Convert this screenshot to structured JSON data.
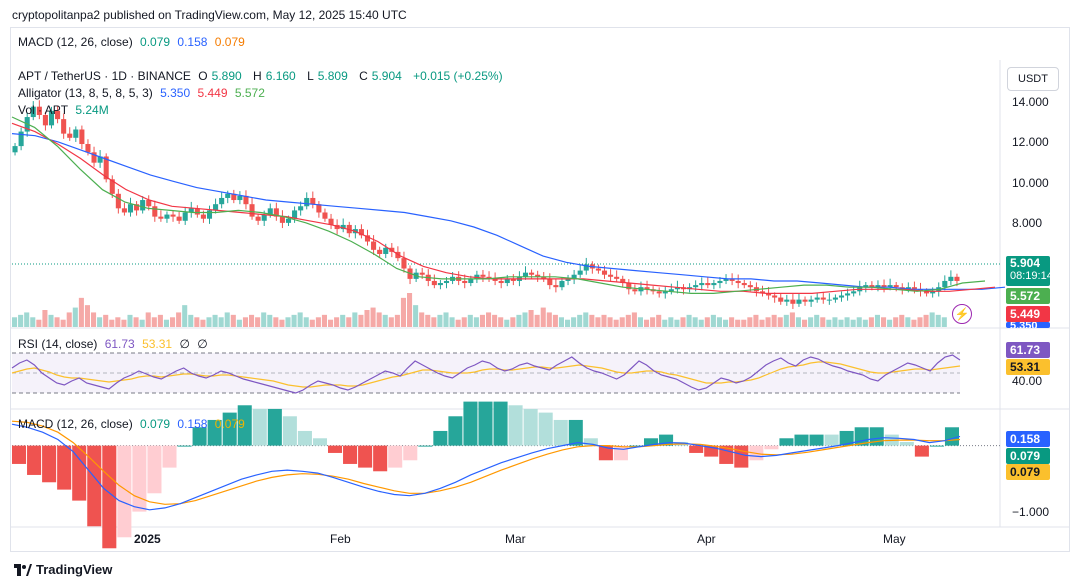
{
  "header": {
    "publish_text": "cryptopolitanpa2 published on TradingView.com, May 12, 2025 15:40 UTC"
  },
  "top_macd": {
    "title": "MACD (12, 26, close)",
    "v1": "0.079",
    "v2": "0.158",
    "v3": "0.079"
  },
  "main_legend": {
    "symbol": "APT / TetherUS · 1D · BINANCE",
    "o_label": "O",
    "o": "5.890",
    "h_label": "H",
    "h": "6.160",
    "l_label": "L",
    "l": "5.809",
    "c_label": "C",
    "c": "5.904",
    "change": "+0.015 (+0.25%)",
    "alligator_title": "Alligator (13, 8, 5, 8, 5, 3)",
    "jaw": "5.350",
    "teeth": "5.449",
    "lips": "5.572",
    "vol_title": "Vol · APT",
    "vol_value": "5.24M"
  },
  "currency_button": "USDT",
  "price_tags": {
    "last": "5.904",
    "countdown": "08:19:14",
    "lips": "5.572",
    "teeth": "5.449",
    "jaw": "5.350"
  },
  "rsi": {
    "title": "RSI (14, close)",
    "rsi": "61.73",
    "ma": "53.31",
    "v3": "∅",
    "v4": "∅",
    "tag_rsi": "61.73",
    "tag_ma": "53.31",
    "axis_label": "40.00"
  },
  "macd": {
    "title": "MACD (12, 26, close)",
    "hist": "0.079",
    "macd": "0.158",
    "signal": "0.079",
    "tag_macd": "0.158",
    "tag_hist": "0.079",
    "tag_signal": "0.079",
    "axis_label": "−1.000"
  },
  "footer": {
    "brand": "TradingView"
  },
  "colors": {
    "up": "#26a69a",
    "down": "#ef5350",
    "jaw": "#2962ff",
    "teeth": "#f23645",
    "lips": "#4caf50",
    "rsi": "#7e57c2",
    "rsi_ma": "#fbc02d",
    "macd": "#2962ff",
    "signal": "#ff9800"
  },
  "chart_data": {
    "type": "candlestick",
    "y_ticks": [
      "14.000",
      "12.000",
      "10.000",
      "8.000"
    ],
    "x_ticks": [
      "2025",
      "Feb",
      "Mar",
      "Apr",
      "May"
    ],
    "price_ylim": [
      4.5,
      15.2
    ],
    "closes": [
      12.4,
      13.1,
      13.8,
      14.3,
      13.9,
      13.4,
      14.1,
      13.7,
      13.0,
      12.8,
      13.2,
      12.5,
      12.1,
      11.6,
      11.9,
      10.8,
      10.1,
      9.4,
      9.2,
      9.6,
      9.3,
      9.8,
      9.5,
      9.0,
      8.9,
      9.1,
      9.0,
      8.8,
      9.2,
      9.4,
      9.1,
      8.9,
      9.3,
      9.6,
      9.9,
      10.1,
      9.8,
      10.0,
      9.6,
      9.0,
      8.8,
      9.1,
      9.4,
      9.0,
      8.7,
      8.9,
      9.3,
      9.5,
      9.9,
      9.6,
      9.2,
      8.9,
      8.6,
      8.4,
      8.6,
      8.2,
      8.4,
      8.1,
      7.8,
      7.4,
      7.2,
      7.5,
      7.3,
      7.0,
      6.5,
      6.0,
      6.3,
      6.2,
      5.9,
      5.7,
      5.8,
      5.9,
      6.1,
      5.9,
      5.8,
      6.0,
      6.2,
      6.1,
      6.0,
      5.9,
      5.8,
      6.0,
      5.9,
      6.1,
      6.3,
      6.2,
      6.1,
      6.0,
      5.7,
      5.6,
      5.9,
      6.0,
      6.2,
      6.4,
      6.7,
      6.5,
      6.4,
      6.2,
      6.1,
      6.0,
      5.8,
      5.5,
      5.4,
      5.6,
      5.5,
      5.4,
      5.3,
      5.4,
      5.5,
      5.6,
      5.5,
      5.6,
      5.7,
      5.8,
      5.7,
      5.8,
      5.9,
      6.0,
      5.9,
      5.8,
      5.7,
      5.6,
      5.4,
      5.3,
      5.2,
      5.1,
      4.9,
      5.0,
      4.8,
      5.0,
      4.9,
      5.0,
      5.1,
      5.0,
      5.0,
      5.1,
      5.2,
      5.3,
      5.4,
      5.6,
      5.7,
      5.6,
      5.7,
      5.6,
      5.7,
      5.6,
      5.5,
      5.6,
      5.5,
      5.4,
      5.3,
      5.4,
      5.6,
      5.9,
      6.1,
      5.9
    ],
    "jaw": [
      13.0,
      12.9,
      12.6,
      12.2,
      11.8,
      11.4,
      11.0,
      10.7,
      10.4,
      10.2,
      10.0,
      9.8,
      9.7,
      9.6,
      9.5,
      9.4,
      9.3,
      9.2,
      9.0,
      8.8,
      8.5,
      8.1,
      7.6,
      7.1,
      6.8,
      6.6,
      6.5,
      6.4,
      6.3,
      6.2,
      6.1,
      6.0,
      6.0,
      5.9,
      5.9,
      5.8,
      5.7,
      5.6,
      5.6,
      5.5,
      5.5,
      5.5,
      5.5,
      5.6
    ],
    "teeth": [
      13.5,
      13.1,
      12.5,
      11.8,
      11.0,
      10.3,
      9.8,
      9.5,
      9.4,
      9.3,
      9.2,
      9.1,
      9.0,
      8.8,
      8.6,
      8.3,
      7.8,
      7.1,
      6.6,
      6.3,
      6.1,
      6.0,
      6.0,
      6.0,
      6.0,
      6.0,
      5.9,
      5.8,
      5.7,
      5.6,
      5.5,
      5.4,
      5.4,
      5.3,
      5.3,
      5.3,
      5.4,
      5.5,
      5.5,
      5.5,
      5.4,
      5.4,
      5.5,
      5.6
    ],
    "lips": [
      13.8,
      13.3,
      12.4,
      11.3,
      10.3,
      9.7,
      9.4,
      9.3,
      9.2,
      9.2,
      9.3,
      9.2,
      9.0,
      8.7,
      8.3,
      7.8,
      7.2,
      6.5,
      6.1,
      6.0,
      6.0,
      6.0,
      6.1,
      6.1,
      6.1,
      6.0,
      5.8,
      5.6,
      5.5,
      5.4,
      5.3,
      5.3,
      5.4,
      5.5,
      5.6,
      5.7,
      5.7,
      5.6,
      5.6,
      5.5,
      5.4,
      5.5,
      5.8,
      5.9
    ],
    "volume": [
      4,
      5,
      6,
      4,
      3,
      7,
      5,
      4,
      3,
      6,
      8,
      12,
      9,
      6,
      4,
      5,
      3,
      4,
      3,
      5,
      4,
      3,
      6,
      4,
      5,
      3,
      4,
      6,
      9,
      5,
      4,
      3,
      4,
      5,
      4,
      6,
      5,
      3,
      4,
      5,
      4,
      6,
      5,
      4,
      3,
      4,
      5,
      6,
      4,
      3,
      4,
      5,
      3,
      4,
      5,
      4,
      6,
      5,
      7,
      8,
      6,
      5,
      4,
      5,
      12,
      14,
      9,
      6,
      5,
      4,
      5,
      6,
      4,
      3,
      4,
      5,
      4,
      5,
      6,
      5,
      4,
      3,
      4,
      5,
      6,
      7,
      5,
      8,
      6,
      5,
      4,
      3,
      4,
      5,
      6,
      5,
      4,
      5,
      4,
      3,
      4,
      5,
      6,
      4,
      3,
      4,
      5,
      3,
      4,
      3,
      4,
      5,
      4,
      3,
      4,
      5,
      4,
      3,
      4,
      3,
      3,
      4,
      5,
      3,
      4,
      5,
      4,
      5,
      6,
      4,
      3,
      4,
      5,
      4,
      3,
      4,
      3,
      4,
      3,
      4,
      3,
      4,
      5,
      4,
      3,
      4,
      5,
      4,
      3,
      4,
      5,
      6,
      5,
      4
    ],
    "rsi_ylim": [
      20,
      90
    ],
    "rsi": [
      55,
      60,
      63,
      58,
      50,
      45,
      40,
      38,
      42,
      45,
      40,
      38,
      36,
      34,
      40,
      45,
      48,
      52,
      49,
      46,
      44,
      48,
      52,
      55,
      50,
      47,
      45,
      48,
      52,
      50,
      47,
      44,
      42,
      40,
      38,
      36,
      34,
      32,
      30,
      33,
      38,
      42,
      40,
      38,
      35,
      33,
      36,
      40,
      44,
      48,
      52,
      50,
      47,
      55,
      62,
      58,
      54,
      50,
      47,
      45,
      50,
      55,
      58,
      62,
      60,
      55,
      52,
      54,
      58,
      60,
      57,
      55,
      53,
      58,
      62,
      66,
      60,
      55,
      52,
      50,
      47,
      44,
      48,
      55,
      62,
      58,
      52,
      48,
      46,
      44,
      40,
      36,
      33,
      35,
      40,
      45,
      43,
      40,
      42,
      46,
      52,
      58,
      62,
      65,
      60,
      57,
      63,
      66,
      64,
      60,
      57,
      55,
      52,
      50,
      48,
      44,
      42,
      48,
      52,
      56,
      60,
      58,
      55,
      52,
      60,
      66,
      68,
      63
    ],
    "rsi_ma": [
      50,
      52,
      54,
      55,
      53,
      51,
      48,
      46,
      45,
      45,
      44,
      43,
      42,
      41,
      42,
      43,
      44,
      46,
      47,
      47,
      46,
      47,
      48,
      49,
      49,
      48,
      47,
      47,
      48,
      48,
      47,
      46,
      45,
      44,
      43,
      42,
      40,
      38,
      37,
      36,
      36,
      37,
      38,
      38,
      38,
      37,
      37,
      38,
      40,
      42,
      44,
      46,
      47,
      49,
      51,
      53,
      53,
      52,
      51,
      50,
      50,
      50,
      51,
      53,
      54,
      54,
      53,
      53,
      54,
      55,
      56,
      56,
      55,
      55,
      56,
      57,
      58,
      57,
      56,
      55,
      53,
      51,
      50,
      50,
      51,
      52,
      52,
      51,
      49,
      48,
      46,
      44,
      42,
      40,
      40,
      40,
      41,
      41,
      42,
      43,
      45,
      48,
      51,
      54,
      56,
      57,
      58,
      60,
      61,
      61,
      60,
      59,
      57,
      55,
      53,
      51,
      50,
      50,
      51,
      52,
      53,
      54,
      54,
      53,
      54,
      55,
      56,
      57
    ],
    "rsi_ticks": [
      40
    ],
    "macd_ylim": [
      -1.25,
      0.55
    ],
    "macd_line": [
      0.35,
      0.3,
      0.22,
      0.1,
      -0.1,
      -0.4,
      -0.7,
      -0.9,
      -1.0,
      -1.05,
      -1.02,
      -0.95,
      -0.85,
      -0.75,
      -0.65,
      -0.55,
      -0.48,
      -0.42,
      -0.4,
      -0.42,
      -0.45,
      -0.52,
      -0.6,
      -0.68,
      -0.75,
      -0.8,
      -0.82,
      -0.78,
      -0.7,
      -0.6,
      -0.48,
      -0.38,
      -0.28,
      -0.2,
      -0.12,
      -0.05,
      0.0,
      0.05,
      0.02,
      -0.04,
      -0.06,
      -0.02,
      0.02,
      0.05,
      0.04,
      0.0,
      -0.04,
      -0.1,
      -0.16,
      -0.18,
      -0.16,
      -0.12,
      -0.08,
      -0.04,
      0.0,
      0.05,
      0.1,
      0.13,
      0.12,
      0.1,
      0.05,
      0.08,
      0.15
    ],
    "signal_line": [
      0.4,
      0.38,
      0.32,
      0.22,
      0.05,
      -0.18,
      -0.42,
      -0.65,
      -0.82,
      -0.92,
      -0.96,
      -0.95,
      -0.9,
      -0.82,
      -0.74,
      -0.66,
      -0.58,
      -0.52,
      -0.48,
      -0.46,
      -0.47,
      -0.5,
      -0.55,
      -0.62,
      -0.68,
      -0.74,
      -0.78,
      -0.78,
      -0.74,
      -0.68,
      -0.6,
      -0.5,
      -0.4,
      -0.31,
      -0.22,
      -0.14,
      -0.07,
      -0.02,
      0.0,
      0.0,
      -0.02,
      -0.02,
      0.0,
      0.02,
      0.03,
      0.02,
      -0.01,
      -0.05,
      -0.1,
      -0.14,
      -0.15,
      -0.14,
      -0.11,
      -0.07,
      -0.03,
      0.01,
      0.05,
      0.08,
      0.09,
      0.09,
      0.08,
      0.08,
      0.1
    ],
    "macd_ticks": [
      -1.0
    ]
  }
}
